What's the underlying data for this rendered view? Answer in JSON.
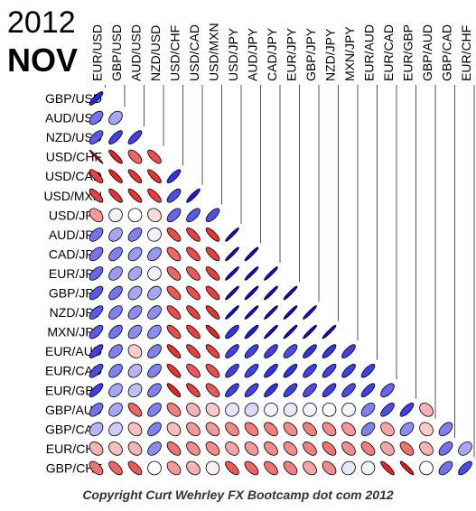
{
  "title": {
    "year": "2012",
    "month": "NOV"
  },
  "footer": "Copyright Curt Wehrley FX Bootcamp dot com 2012",
  "colors": {
    "positive": "#0000e0",
    "negative": "#e00000",
    "neutral": "#ffffff",
    "outline": "#000000"
  },
  "chart_data": {
    "type": "heatmap",
    "subtype": "correlation-ellipse-matrix",
    "triangle": "lower",
    "columns": [
      "EUR/USD",
      "GBP/USD",
      "AUD/USD",
      "NZD/USD",
      "USD/CHF",
      "USD/CAD",
      "USD/MXN",
      "USD/JPY",
      "AUD/JPY",
      "CAD/JPY",
      "EUR/JPY",
      "GBP/JPY",
      "NZD/JPY",
      "MXN/JPY",
      "EUR/AUD",
      "EUR/CAD",
      "EUR/GBP",
      "GBP/AUD",
      "GBP/CAD",
      "EUR/CHF"
    ],
    "rows": [
      "GBP/USD",
      "AUD/USD",
      "NZD/USD",
      "USD/CHF",
      "USD/CAD",
      "USD/MXN",
      "USD/JPY",
      "AUD/JPY",
      "CAD/JPY",
      "EUR/JPY",
      "GBP/JPY",
      "NZD/JPY",
      "MXN/JPY",
      "EUR/AUD",
      "EUR/CAD",
      "EUR/GBP",
      "GBP/AUD",
      "GBP/CAD",
      "EUR/CHF",
      "GBP/CHF"
    ],
    "values": [
      [
        0.85
      ],
      [
        0.55,
        0.35
      ],
      [
        0.65,
        0.75,
        0.75
      ],
      [
        -0.98,
        -0.85,
        -0.6,
        -0.7
      ],
      [
        -0.75,
        -0.85,
        -0.8,
        -0.8,
        0.8
      ],
      [
        -0.75,
        -0.8,
        -0.8,
        -0.75,
        0.7,
        0.9
      ],
      [
        -0.4,
        0.05,
        0.0,
        -0.15,
        0.6,
        0.65,
        0.7
      ],
      [
        0.55,
        0.35,
        0.5,
        0.05,
        -0.7,
        -0.75,
        -0.8,
        0.95
      ],
      [
        0.55,
        0.5,
        0.4,
        0.4,
        -0.6,
        -0.7,
        -0.75,
        0.95,
        0.95
      ],
      [
        0.6,
        0.4,
        0.35,
        0.05,
        -0.6,
        -0.65,
        -0.75,
        0.95,
        0.95,
        0.95
      ],
      [
        0.65,
        0.55,
        0.35,
        0.35,
        -0.65,
        -0.7,
        -0.75,
        0.95,
        0.95,
        0.95,
        0.95
      ],
      [
        0.65,
        0.5,
        0.45,
        0.45,
        -0.7,
        -0.75,
        -0.8,
        0.95,
        0.95,
        0.95,
        0.95,
        0.95
      ],
      [
        0.65,
        0.55,
        0.45,
        0.45,
        -0.7,
        -0.75,
        -0.85,
        0.8,
        0.9,
        0.95,
        0.95,
        0.95,
        0.95
      ],
      [
        0.75,
        0.5,
        -0.2,
        0.5,
        -0.8,
        -0.75,
        -0.75,
        0.75,
        0.75,
        0.75,
        0.7,
        0.8,
        0.8,
        0.75
      ],
      [
        0.7,
        0.5,
        0.3,
        0.5,
        -0.8,
        -0.65,
        -0.7,
        0.75,
        0.75,
        0.8,
        0.8,
        0.75,
        0.75,
        0.75,
        0.75
      ],
      [
        0.75,
        0.35,
        0.25,
        0.5,
        -0.85,
        -0.75,
        -0.65,
        0.75,
        0.75,
        0.8,
        0.75,
        0.7,
        0.75,
        0.7,
        0.75,
        0.6
      ],
      [
        0.55,
        0.35,
        -0.6,
        0.5,
        -0.5,
        -0.3,
        -0.2,
        0.1,
        0.15,
        0.05,
        0.1,
        0.05,
        0.0,
        0.05,
        0.5,
        0.7,
        0.75,
        -0.3
      ],
      [
        0.3,
        0.2,
        -0.25,
        0.5,
        -0.25,
        -0.4,
        -0.4,
        -0.45,
        -0.5,
        -0.5,
        -0.45,
        -0.5,
        -0.45,
        -0.4,
        0.5,
        -0.35,
        0.45,
        -0.2,
        0.5
      ],
      [
        -0.3,
        -0.25,
        -0.3,
        0.45,
        -0.55,
        -0.45,
        -0.45,
        -0.35,
        -0.4,
        -0.45,
        -0.45,
        -0.5,
        -0.55,
        -0.45,
        -0.5,
        -0.35,
        -0.55,
        -0.3,
        0.55,
        0.35
      ],
      [
        -0.55,
        -0.6,
        -0.65,
        0.0,
        -0.4,
        -0.3,
        -0.05,
        -0.65,
        -0.6,
        -0.55,
        -0.5,
        -0.35,
        -0.45,
        0.1,
        0.05,
        -0.85,
        -0.9,
        0.0,
        0.55,
        0.7
      ]
    ]
  }
}
